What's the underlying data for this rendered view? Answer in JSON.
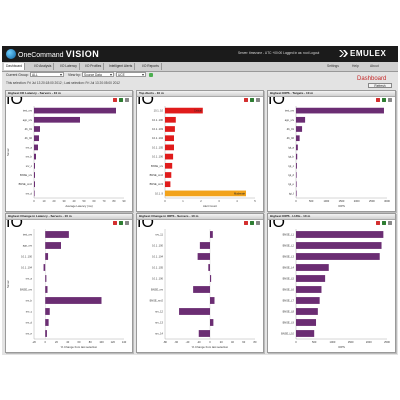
{
  "app": {
    "brand_prefix": "OneCommand",
    "brand_name": "VISION",
    "top_info": "Server: timezone - UTC +00:00 Logged in as: root Logout",
    "vendor": "EMULEX"
  },
  "tabs": [
    "Dashboard",
    "I/O Analysis",
    "I/O Latency",
    "I/O Profiles",
    "Intelligent Alerts",
    "I/O Reports"
  ],
  "tabbar_right": [
    "Settings",
    "Help",
    "About"
  ],
  "filters": {
    "current_group_label": "Current Group:",
    "current_group_value": "ALL",
    "view_by_label": "View by:",
    "view_by_value": "Source Data",
    "view_by_value2": "UCE",
    "selection_info": "This selection: Fri Jul 13 20:18:00 2012 ; Last selection: Fri Jul 13 20:05:00 2012"
  },
  "dashboard_title": "Dashboard",
  "refresh_label": "Refresh",
  "colors": {
    "purple": "#6b2d73",
    "red": "#e01b1b",
    "orange": "#f2a31b",
    "accent_red": "#c62828"
  },
  "icons": [
    "pdf-export-icon",
    "excel-export-icon",
    "settings-icon"
  ],
  "panels": [
    {
      "title": "Highest I/O Latency - Servers - 10 m",
      "widget_tag": "IO",
      "ylabel": "Server",
      "xlabel": "Average Latency (ms)",
      "xticks": [
        "0",
        "10",
        "20",
        "30",
        "40",
        "50",
        "60",
        "70",
        "80",
        "90"
      ],
      "categories": [
        "test_srv",
        "app_srv",
        "db_01",
        "db_02",
        "srv_a",
        "srv_b",
        "srv_c",
        "BNSE_srv",
        "BNSE_srv2",
        "srv_d"
      ],
      "values": [
        82,
        46,
        6,
        5,
        4,
        2,
        1,
        1,
        1,
        0.5
      ],
      "xmax": 90,
      "colors": [
        "purple"
      ]
    },
    {
      "title": "Top Alerts - 10 m",
      "widget_tag": "IO",
      "ylabel": "",
      "xlabel": "Alert Count",
      "xticks": [
        "0",
        "1",
        "2",
        "3",
        "4",
        "5"
      ],
      "categories": [
        "10.1..10",
        "10.1..100",
        "10.1..103",
        "10.1..104",
        "10.1..105",
        "10.1..106",
        "BNSE_srv",
        "BNSE_srv2",
        "BNSE_srv3",
        "10.1..9"
      ],
      "values": [
        2.1,
        0.6,
        0.55,
        0.5,
        0.5,
        0.45,
        0.4,
        0.35,
        0.3,
        4.5
      ],
      "xmax": 5,
      "colors": [
        "red",
        "red",
        "red",
        "red",
        "red",
        "red",
        "red",
        "red",
        "red",
        "orange"
      ],
      "bar_labels": [
        "Critical",
        "",
        "",
        "",
        "",
        "",
        "",
        "",
        "",
        "Moderate"
      ]
    },
    {
      "title": "Highest IOPS - Targets - 10 m",
      "widget_tag": "IO",
      "ylabel": "",
      "xlabel": "IOPS",
      "xticks": [
        "0",
        "500",
        "1000",
        "1500",
        "2000",
        "2500",
        "3000"
      ],
      "categories": [
        "test_srv",
        "app_srv",
        "db_01",
        "db_02",
        "tgt_a",
        "tgt_b",
        "tgt_c",
        "tgt_d",
        "tgt_e",
        "tgt_f"
      ],
      "values": [
        2900,
        300,
        200,
        120,
        60,
        40,
        30,
        20,
        15,
        10
      ],
      "xmax": 3000,
      "colors": [
        "purple"
      ]
    },
    {
      "title": "Highest Change in Latency - Servers - 10 m",
      "widget_tag": "IO",
      "ylabel": "Server",
      "xlabel": "% Change from last selection",
      "xticks": [
        "-20",
        "0",
        "20",
        "40",
        "60",
        "80",
        "100",
        "120",
        "140"
      ],
      "xmin": -20,
      "categories": [
        "test_srv",
        "app_srv",
        "10.1..100",
        "10.1..104",
        "srv_a",
        "BNSE_srv",
        "srv_b",
        "srv_c",
        "srv_d",
        "srv_e"
      ],
      "values": [
        42,
        28,
        5,
        -3,
        2,
        4,
        100,
        8,
        6,
        3
      ],
      "xmax": 140,
      "colors": [
        "purple"
      ]
    },
    {
      "title": "Highest Change in IOPS - Servers - 10 m",
      "widget_tag": "IO",
      "ylabel": "",
      "xlabel": "% Change from last selection",
      "xticks": [
        "-80",
        "-60",
        "-40",
        "-20",
        "0",
        "20",
        "40",
        "60",
        "80"
      ],
      "xmin": -80,
      "categories": [
        "srv_11",
        "10.1..100",
        "10.1..104",
        "10.1..105",
        "10.1..106",
        "BNSE_srv",
        "BNSE_srv2",
        "srv_12",
        "srv_13",
        "srv_14"
      ],
      "values": [
        5,
        -18,
        -22,
        -3,
        2,
        -30,
        8,
        -55,
        6,
        -20
      ],
      "xmax": 80,
      "colors": [
        "purple"
      ]
    },
    {
      "title": "Highest IOPS - LUNs - 10 m",
      "widget_tag": "IO",
      "ylabel": "",
      "xlabel": "IOPS",
      "xticks": [
        "0",
        "500",
        "1000",
        "1500",
        "2000",
        "2500"
      ],
      "categories": [
        "BNSE_L1",
        "BNSE_L2",
        "BNSE_L3",
        "BNSE_L4",
        "BNSE_L5",
        "BNSE_L6",
        "BNSE_L7",
        "BNSE_L8",
        "BNSE_L9",
        "BNSE_L10"
      ],
      "values": [
        2400,
        2350,
        2300,
        900,
        800,
        700,
        650,
        600,
        550,
        500
      ],
      "xmax": 2500,
      "colors": [
        "purple"
      ]
    }
  ]
}
